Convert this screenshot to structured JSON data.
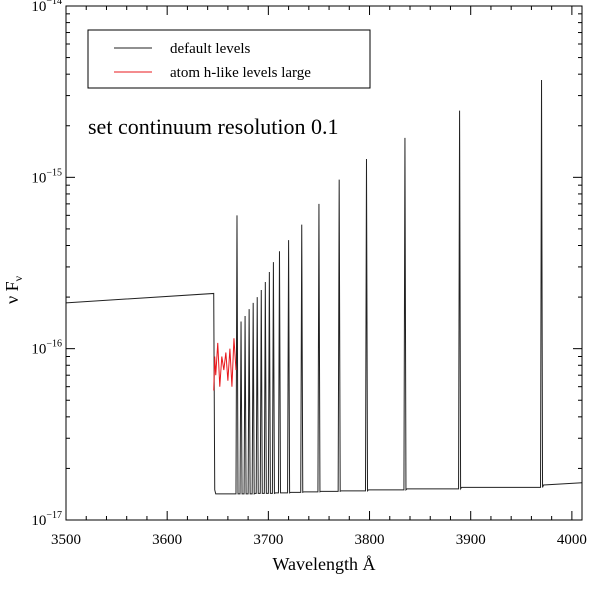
{
  "chart_data": {
    "type": "line",
    "annotation": "set continuum resolution 0.1",
    "xlabel": "Wavelength Å",
    "ylabel_main": "ν F",
    "ylabel_sub": "ν",
    "xlim": [
      3500,
      4010
    ],
    "ylim": [
      1e-17,
      1e-14
    ],
    "yscale": "log",
    "grid": false,
    "legend_position": "top-left",
    "x_ticks": [
      3500,
      3600,
      3700,
      3800,
      3900,
      4000
    ],
    "y_ticks": [
      {
        "value": 1e-17,
        "base": "10",
        "exp": "−17"
      },
      {
        "value": 1e-16,
        "base": "10",
        "exp": "−16"
      },
      {
        "value": 1e-15,
        "base": "10",
        "exp": "−15"
      },
      {
        "value": 1e-14,
        "base": "10",
        "exp": "−14"
      }
    ],
    "series": [
      {
        "name": "default levels",
        "color": "#222222",
        "x": [
          3500,
          3646,
          3647,
          3648,
          3668,
          3669,
          3670,
          3671,
          3672,
          3673,
          3674,
          3675,
          3676,
          3677,
          3678,
          3679,
          3680,
          3681,
          3682,
          3683,
          3684,
          3685,
          3686,
          3687,
          3688,
          3689,
          3690,
          3691,
          3692,
          3693,
          3694,
          3695,
          3696,
          3697,
          3698,
          3699,
          3700,
          3701,
          3702,
          3703,
          3704,
          3705,
          3706,
          3707,
          3710,
          3711,
          3712,
          3713,
          3719,
          3720,
          3721,
          3722,
          3732,
          3733,
          3734,
          3735,
          3749,
          3750,
          3751,
          3752,
          3769,
          3770,
          3771,
          3772,
          3796,
          3797,
          3798,
          3799,
          3834,
          3835,
          3836,
          3837,
          3888,
          3889,
          3890,
          3891,
          3969,
          3970,
          3971,
          3972,
          4010
        ],
        "y": [
          1.85e-16,
          2.1e-16,
          1.5e-17,
          1.42e-17,
          1.42e-17,
          6e-16,
          1.42e-17,
          1.42e-17,
          1.42e-17,
          1.44e-16,
          1.42e-17,
          1.42e-17,
          1.42e-17,
          1.55e-16,
          1.42e-17,
          1.42e-17,
          1.42e-17,
          1.7e-16,
          1.42e-17,
          1.42e-17,
          1.42e-17,
          1.85e-16,
          1.42e-17,
          1.43e-17,
          1.43e-17,
          2e-16,
          1.43e-17,
          1.43e-17,
          1.43e-17,
          2.2e-16,
          1.43e-17,
          1.43e-17,
          1.43e-17,
          2.45e-16,
          1.43e-17,
          1.43e-17,
          1.43e-17,
          2.8e-16,
          1.43e-17,
          1.43e-17,
          1.43e-17,
          3.2e-16,
          1.43e-17,
          1.44e-17,
          1.44e-17,
          3.7e-16,
          1.44e-17,
          1.44e-17,
          1.44e-17,
          4.3e-16,
          1.44e-17,
          1.45e-17,
          1.45e-17,
          5.3e-16,
          1.45e-17,
          1.46e-17,
          1.46e-17,
          7e-16,
          1.46e-17,
          1.47e-17,
          1.47e-17,
          9.7e-16,
          1.47e-17,
          1.48e-17,
          1.48e-17,
          1.28e-15,
          1.48e-17,
          1.5e-17,
          1.5e-17,
          1.7e-15,
          1.5e-17,
          1.52e-17,
          1.52e-17,
          2.45e-15,
          1.52e-17,
          1.55e-17,
          1.55e-17,
          3.7e-15,
          1.55e-17,
          1.6e-17,
          1.65e-17
        ]
      },
      {
        "name": "atom h-like levels large",
        "color": "#e8181c",
        "x": [
          3646,
          3647,
          3648,
          3650,
          3652,
          3654,
          3656,
          3658,
          3660,
          3662,
          3664,
          3666,
          3668
        ],
        "y": [
          5.7e-17,
          9e-17,
          7e-17,
          1.08e-16,
          6e-17,
          9e-17,
          7.5e-17,
          9.5e-17,
          6.5e-17,
          1e-16,
          6e-17,
          1.15e-16,
          7.5e-17
        ]
      }
    ]
  }
}
